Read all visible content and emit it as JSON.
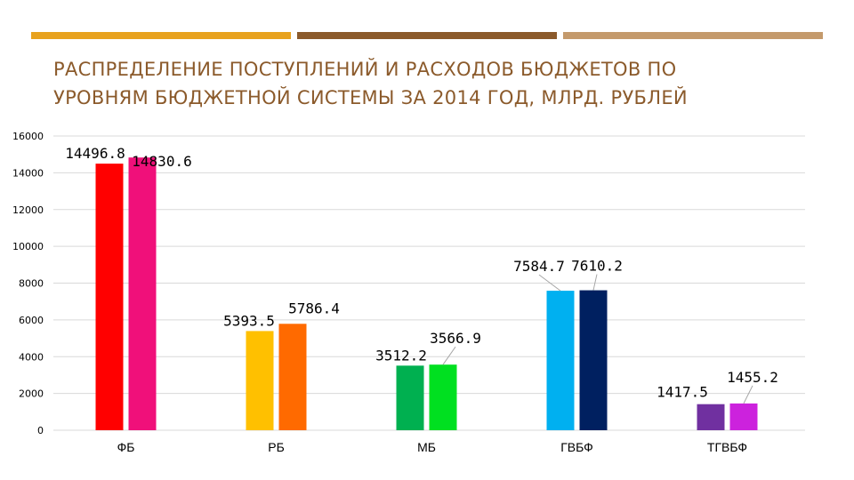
{
  "header": {
    "title_line1": "РАСПРЕДЕЛЕНИЕ ПОСТУПЛЕНИЙ И РАСХОДОВ БЮДЖЕТОВ ПО",
    "title_line2": "УРОВНЯМ БЮДЖЕТНОЙ СИСТЕМЫ ЗА 2014 ГОД, МЛРД. РУБЛЕЙ",
    "accent_colors": [
      "#e8a21e",
      "#8b5a2b",
      "#c49a6c"
    ]
  },
  "chart_data": {
    "type": "bar",
    "title": "РАСПРЕДЕЛЕНИЕ ПОСТУПЛЕНИЙ И РАСХОДОВ БЮДЖЕТОВ ПО УРОВНЯМ БЮДЖЕТНОЙ СИСТЕМЫ ЗА 2014 ГОД, МЛРД. РУБЛЕЙ",
    "categories": [
      "ФБ",
      "РБ",
      "МБ",
      "ГВБФ",
      "ТГВБФ"
    ],
    "series": [
      {
        "values": [
          14496.8,
          5393.5,
          3512.2,
          7584.7,
          1417.5
        ]
      },
      {
        "values": [
          14830.6,
          5786.4,
          3566.9,
          7610.2,
          1455.2
        ]
      }
    ],
    "bar_colors": [
      [
        "#ff0000",
        "#f0107a"
      ],
      [
        "#ffc000",
        "#ff6a00"
      ],
      [
        "#00b050",
        "#00e020"
      ],
      [
        "#00b0f0",
        "#002060"
      ],
      [
        "#7030a0",
        "#cc22dd"
      ]
    ],
    "ylim": [
      0,
      16000
    ],
    "yticks": [
      "0",
      "2000",
      "4000",
      "6000",
      "8000",
      "10000",
      "12000",
      "14000",
      "16000"
    ],
    "grid": true,
    "legend": "none",
    "xlabel": "",
    "ylabel": ""
  }
}
